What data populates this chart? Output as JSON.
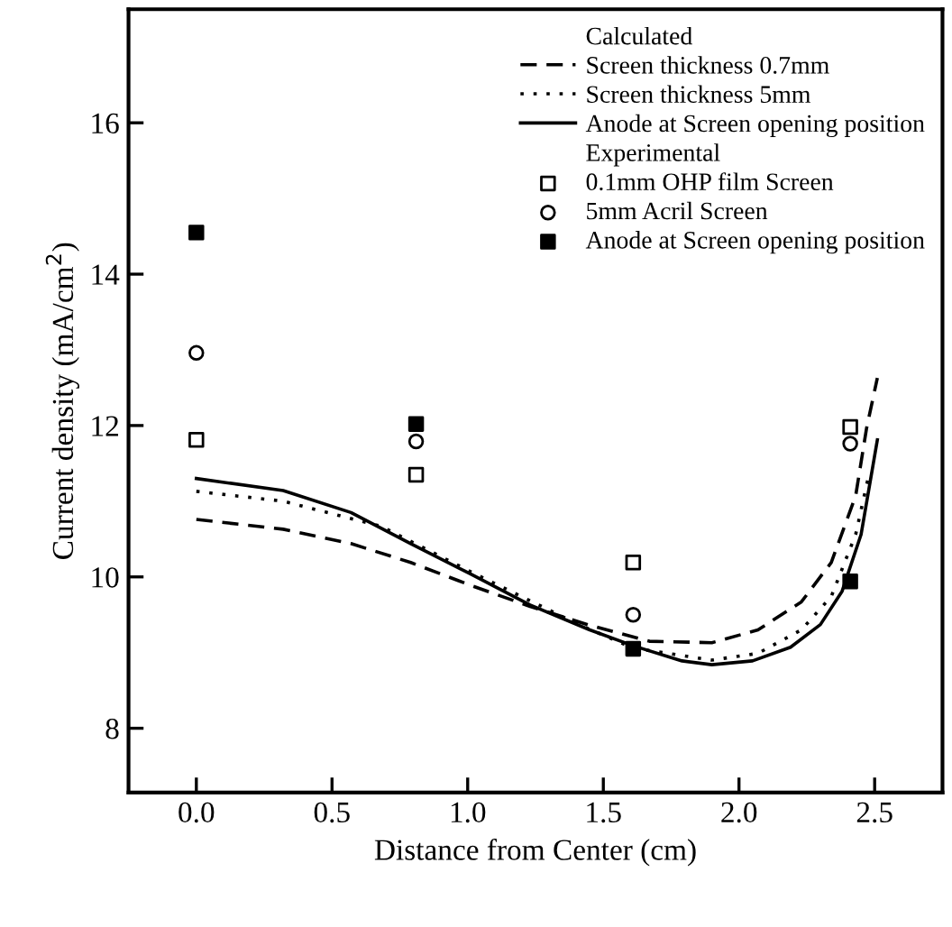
{
  "chart_data": {
    "type": "scatter",
    "xlabel": "Distance from Center (cm)",
    "ylabel": "Current density (mA/cm$^{2}$)",
    "xlim": [
      -0.25,
      2.75
    ],
    "ylim": [
      7.15,
      17.5
    ],
    "xticks": [
      {
        "value": 0,
        "label": "0.0"
      },
      0.5,
      {
        "value": 1,
        "label": "1.0"
      },
      1.5,
      {
        "value": 2,
        "label": "2.0"
      },
      2.5
    ],
    "yticks": [
      8,
      10,
      12,
      14,
      16
    ],
    "grid": false,
    "legend": "top right",
    "annotations": [
      "Calculated",
      "Experimental"
    ],
    "series": [
      {
        "name": "Screen thickness 0.7mm",
        "type": "line",
        "line_style": "dashed",
        "marker": "none",
        "color": "#000000",
        "x": [
          0,
          0.32,
          0.57,
          0.79,
          1.01,
          1.23,
          1.45,
          1.67,
          1.9,
          2.07,
          2.23,
          2.34,
          2.43,
          2.47,
          2.51
        ],
        "values": [
          10.76,
          10.63,
          10.44,
          10.19,
          9.89,
          9.61,
          9.36,
          9.15,
          9.13,
          9.3,
          9.67,
          10.19,
          11.07,
          11.96,
          12.63
        ]
      },
      {
        "name": "Screen thickness 5mm",
        "type": "line",
        "line_style": "dotted",
        "marker": "none",
        "color": "#000000",
        "x": [
          0,
          0.32,
          0.68,
          1.01,
          1.41,
          1.61,
          1.9,
          2.07,
          2.23,
          2.34,
          2.43,
          2.48
        ],
        "values": [
          11.13,
          11.0,
          10.67,
          10.07,
          9.37,
          9.06,
          8.9,
          8.99,
          9.3,
          9.74,
          10.56,
          11.37
        ]
      },
      {
        "name": "Anode at Screen opening position",
        "type": "line",
        "line_style": "solid",
        "marker": "none",
        "color": "#000000",
        "x": [
          0,
          0.32,
          0.57,
          0.79,
          1.01,
          1.23,
          1.45,
          1.61,
          1.79,
          1.9,
          2.05,
          2.19,
          2.3,
          2.38,
          2.45,
          2.51
        ],
        "values": [
          11.3,
          11.14,
          10.85,
          10.44,
          10.04,
          9.63,
          9.3,
          9.09,
          8.89,
          8.84,
          8.89,
          9.07,
          9.37,
          9.81,
          10.56,
          11.81
        ]
      },
      {
        "name": "0.1mm OHP film Screen",
        "marker": "square",
        "color": "#ffffff",
        "x": [
          0,
          0.81,
          1.61,
          2.41
        ],
        "values": [
          11.81,
          11.35,
          10.19,
          11.98
        ]
      },
      {
        "name": "5mm Acril Screen",
        "marker": "circle",
        "color": "#ffffff",
        "x": [
          0,
          0.81,
          1.61,
          2.41
        ],
        "values": [
          12.96,
          11.79,
          9.5,
          11.76
        ]
      },
      {
        "name": "Anode at Screen opening position",
        "marker": "square",
        "color": "#000000",
        "x": [
          0,
          0.81,
          1.61,
          2.41
        ],
        "values": [
          14.55,
          12.02,
          9.05,
          9.94
        ]
      }
    ]
  }
}
